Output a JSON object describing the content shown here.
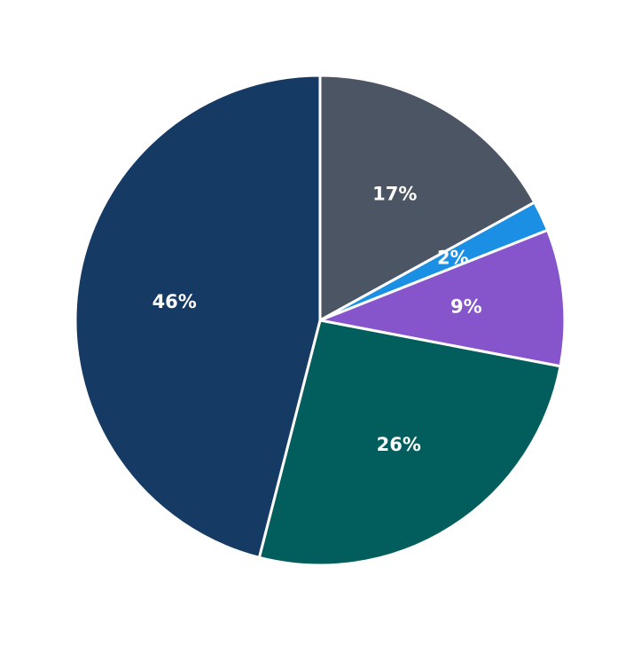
{
  "chart_data": {
    "type": "pie",
    "start_angle": "12 o'clock",
    "direction": "clockwise",
    "slices": [
      {
        "value": 17,
        "label": "17%",
        "color": "#4b5563"
      },
      {
        "value": 2,
        "label": "2%",
        "color": "#1a8fe3"
      },
      {
        "value": 9,
        "label": "9%",
        "color": "#8655cc"
      },
      {
        "value": 26,
        "label": "26%",
        "color": "#025e5d"
      },
      {
        "value": 46,
        "label": "46%",
        "color": "#153a63"
      }
    ]
  }
}
